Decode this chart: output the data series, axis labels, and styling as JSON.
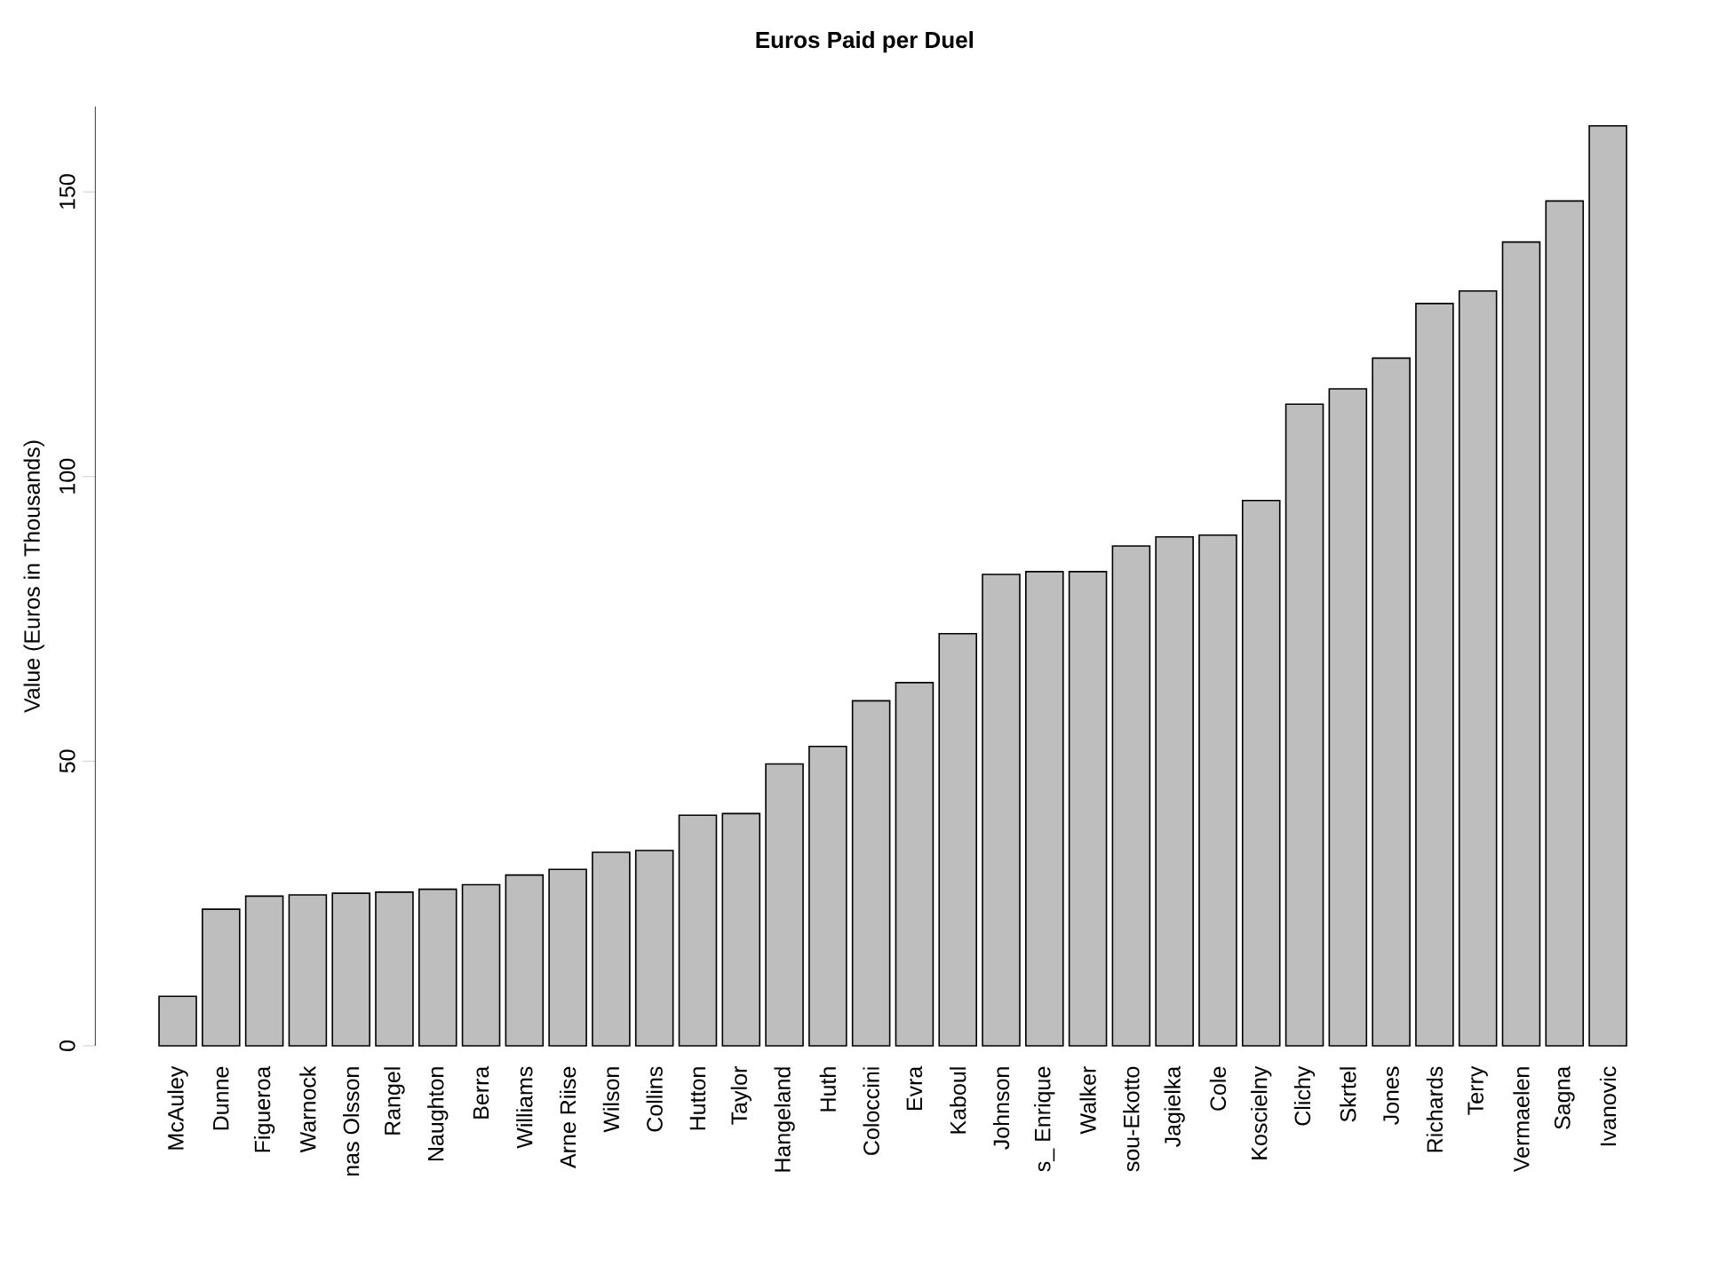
{
  "chart_data": {
    "type": "bar",
    "title": "Euros Paid per Duel",
    "ylabel": "Value (Euros in Thousands)",
    "categories": [
      "McAuley",
      "Dunne",
      "Figueroa",
      "Warnock",
      "nas Olsson",
      "Rangel",
      "Naughton",
      "Berra",
      "Williams",
      "Arne Riise",
      "Wilson",
      "Collins",
      "Hutton",
      "Taylor",
      "Hangeland",
      "Huth",
      "Coloccini",
      "Evra",
      "Kaboul",
      "Johnson",
      "s_ Enrique",
      "Walker",
      "sou-Ekotto",
      "Jagielka",
      "Cole",
      "Koscielny",
      "Clichy",
      "Skrtel",
      "Jones",
      "Richards",
      "Terry",
      "Vermaelen",
      "Sagna",
      "Ivanovic"
    ],
    "values": [
      8.7,
      24,
      26.3,
      26.5,
      26.8,
      27,
      27.5,
      28.3,
      30,
      31,
      34,
      34.3,
      40.5,
      40.8,
      49.5,
      52.6,
      60.6,
      63.8,
      72.4,
      82.8,
      83.3,
      83.3,
      87.8,
      89.4,
      89.7,
      95.8,
      112.7,
      115.4,
      120.8,
      130.4,
      132.6,
      141.2,
      148.4,
      161.6
    ],
    "color": "#bebebe",
    "ylim": [
      0,
      165
    ],
    "yticks": [
      0,
      50,
      100,
      150
    ]
  }
}
